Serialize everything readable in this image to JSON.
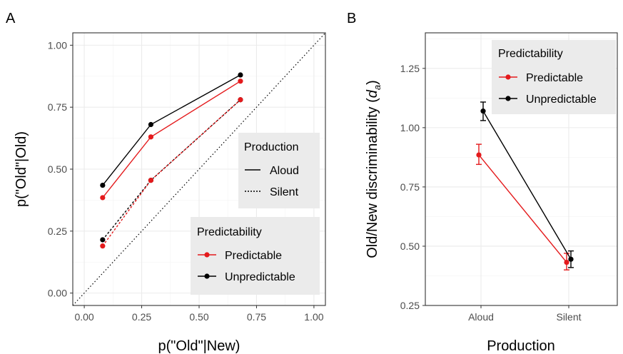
{
  "colors": {
    "predictable": "#e41a1c",
    "unpredictable": "#000000"
  },
  "chart_data": [
    {
      "panel": "A",
      "type": "line",
      "xlabel": "p(\"Old\"|New)",
      "ylabel": "p(\"Old\"|Old)",
      "xlim": [
        -0.05,
        1.05
      ],
      "ylim": [
        -0.05,
        1.05
      ],
      "xticks": [
        "0.00",
        "0.25",
        "0.50",
        "0.75",
        "1.00"
      ],
      "yticks": [
        "0.00",
        "0.25",
        "0.50",
        "0.75",
        "1.00"
      ],
      "grid": true,
      "diagonal_reference": true,
      "series": [
        {
          "predictability": "Unpredictable",
          "production": "Aloud",
          "x": [
            0.08,
            0.29,
            0.68
          ],
          "y": [
            0.435,
            0.68,
            0.88
          ]
        },
        {
          "predictability": "Predictable",
          "production": "Aloud",
          "x": [
            0.08,
            0.29,
            0.68
          ],
          "y": [
            0.385,
            0.63,
            0.855
          ]
        },
        {
          "predictability": "Unpredictable",
          "production": "Silent",
          "x": [
            0.08,
            0.29,
            0.68
          ],
          "y": [
            0.215,
            0.455,
            0.78
          ]
        },
        {
          "predictability": "Predictable",
          "production": "Silent",
          "x": [
            0.08,
            0.29,
            0.68
          ],
          "y": [
            0.19,
            0.455,
            0.78
          ]
        }
      ],
      "legends": [
        {
          "title": "Production",
          "entries": [
            "Aloud",
            "Silent"
          ]
        },
        {
          "title": "Predictability",
          "entries": [
            "Predictable",
            "Unpredictable"
          ]
        }
      ]
    },
    {
      "panel": "B",
      "type": "line",
      "xlabel": "Production",
      "ylabel_main": "Old/New discriminability (",
      "ylabel_d": "d",
      "ylabel_sub": "a",
      "ylabel_close": ")",
      "categories": [
        "Aloud",
        "Silent"
      ],
      "ylim": [
        0.25,
        1.4
      ],
      "yticks": [
        "0.25",
        "0.50",
        "0.75",
        "1.00",
        "1.25"
      ],
      "grid": true,
      "error_bars": true,
      "series": [
        {
          "name": "Predictable",
          "values": [
            0.885,
            0.432
          ],
          "err_low": [
            0.845,
            0.4
          ],
          "err_high": [
            0.93,
            0.47
          ]
        },
        {
          "name": "Unpredictable",
          "values": [
            1.07,
            0.445
          ],
          "err_low": [
            1.03,
            0.41
          ],
          "err_high": [
            1.108,
            0.48
          ]
        }
      ],
      "legend": {
        "title": "Predictability",
        "entries": [
          "Predictable",
          "Unpredictable"
        ]
      }
    }
  ]
}
